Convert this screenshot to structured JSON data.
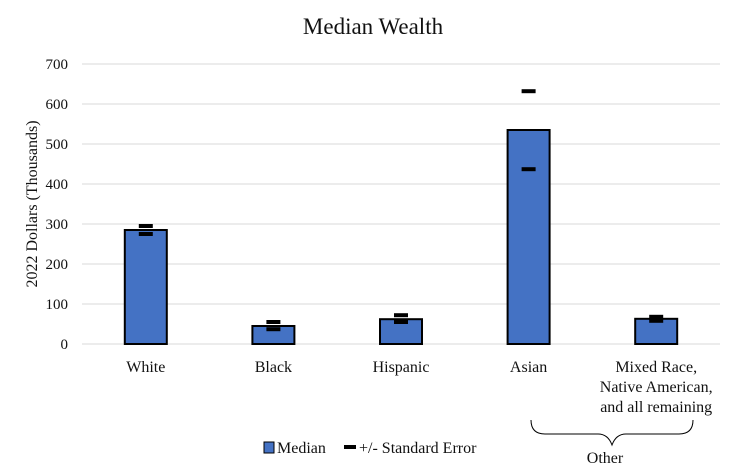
{
  "chart_data": {
    "type": "bar",
    "title": "Median Wealth",
    "xlabel": "",
    "ylabel": "2022 Dollars (Thousands)",
    "ylim": [
      0,
      700
    ],
    "yticks": [
      0,
      100,
      200,
      300,
      400,
      500,
      600,
      700
    ],
    "grid": true,
    "categories": [
      "White",
      "Black",
      "Hispanic",
      "Asian",
      "Mixed Race, Native American, and all remaining"
    ],
    "category_lines": [
      [
        "White"
      ],
      [
        "Black"
      ],
      [
        "Hispanic"
      ],
      [
        "Asian"
      ],
      [
        "Mixed Race,",
        "Native American,",
        "and all remaining"
      ]
    ],
    "series": [
      {
        "name": "Median",
        "values": [
          285,
          45,
          62,
          535,
          63
        ],
        "color": "#4472c4"
      },
      {
        "name": "+/- Standard Error",
        "upper": [
          295,
          55,
          72,
          632,
          68
        ],
        "lower": [
          275,
          37,
          55,
          437,
          58
        ]
      }
    ],
    "legend": {
      "position": "bottom",
      "items": [
        "Median",
        "+/- Standard Error"
      ]
    },
    "annotations": [
      {
        "text": "Other",
        "spans_categories": [
          "Asian",
          "Mixed Race, Native American, and all remaining"
        ]
      }
    ]
  }
}
